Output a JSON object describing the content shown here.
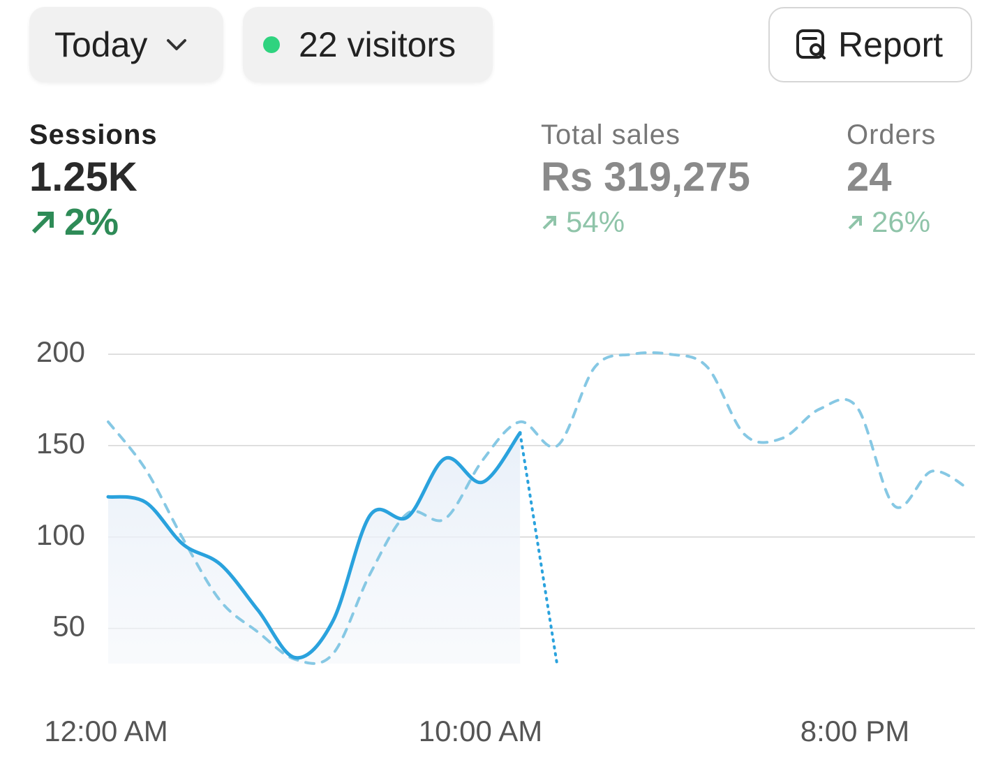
{
  "header": {
    "period": "Today",
    "visitors": "22 visitors",
    "report": "Report"
  },
  "metrics": [
    {
      "label": "Sessions",
      "value": "1.25K",
      "change": "2%"
    },
    {
      "label": "Total sales",
      "value": "Rs 319,275",
      "change": "54%"
    },
    {
      "label": "Orders",
      "value": "24",
      "change": "26%"
    }
  ],
  "chart_data": {
    "type": "line",
    "categories": [
      "12:00 AM",
      null,
      null,
      null,
      null,
      null,
      null,
      null,
      null,
      null,
      "10:00 AM",
      null,
      null,
      null,
      null,
      null,
      null,
      null,
      null,
      null,
      "8:00 PM",
      null,
      null,
      null
    ],
    "ylim": [
      17,
      205
    ],
    "yticks": [
      50,
      100,
      150,
      200
    ],
    "grid": true,
    "series": [
      {
        "color": "#2aa2dd",
        "style": "solid",
        "fill": true,
        "dotted_from_index": 11,
        "values": [
          122,
          119,
          96,
          85,
          60,
          34,
          54,
          112,
          111,
          143,
          130,
          157,
          29,
          null,
          null,
          null,
          null,
          null,
          null,
          null,
          null,
          null,
          null,
          null
        ]
      },
      {
        "color": "#86c8e4",
        "style": "dashed",
        "values": [
          163,
          137,
          99,
          65,
          48,
          33,
          36,
          80,
          113,
          110,
          142,
          163,
          150,
          193,
          200,
          200,
          193,
          156,
          154,
          170,
          171,
          117,
          136,
          126
        ]
      }
    ]
  }
}
